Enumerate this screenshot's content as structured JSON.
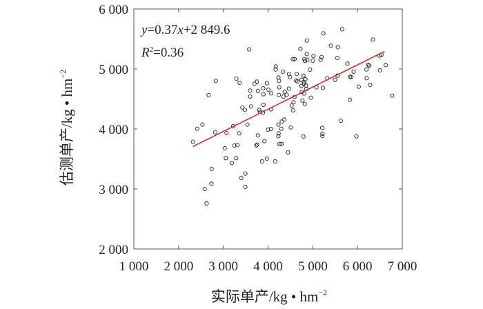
{
  "chart_data": {
    "type": "scatter",
    "xlabel": "实际单产/kg • hm",
    "xlabel_sup": "−2",
    "ylabel": "估测单产/kg • hm",
    "ylabel_sup": "−2",
    "xlim": [
      1000,
      7000
    ],
    "ylim": [
      2000,
      6000
    ],
    "xticks": [
      1000,
      2000,
      3000,
      4000,
      5000,
      6000,
      7000
    ],
    "xtick_labels": [
      "1 000",
      "2 000",
      "3 000",
      "4 000",
      "5 000",
      "6 000",
      "7 000"
    ],
    "yticks": [
      2000,
      3000,
      4000,
      5000,
      6000
    ],
    "ytick_labels": [
      "2 000",
      "3 000",
      "4 000",
      "5 000",
      "6 000"
    ],
    "grid": false,
    "annotations": {
      "equation_y": "y",
      "equation_eq": "=0.37",
      "equation_x": "x",
      "equation_rest": "+2 849.6",
      "r2_label": "R",
      "r2_sup": "2",
      "r2_value": "=0.36"
    },
    "fit": {
      "slope": 0.37,
      "intercept": 2849.6,
      "x_range": [
        2320,
        6600
      ],
      "color": "#e02020"
    },
    "marker_color": "#222222",
    "points": [
      [
        2323,
        3786
      ],
      [
        2415,
        4004
      ],
      [
        2533,
        4073
      ],
      [
        2820,
        3946
      ],
      [
        2672,
        4563
      ],
      [
        2831,
        4801
      ],
      [
        2585,
        3000
      ],
      [
        2626,
        2759
      ],
      [
        2738,
        3334
      ],
      [
        2733,
        3088
      ],
      [
        3031,
        3678
      ],
      [
        3056,
        3514
      ],
      [
        3072,
        3931
      ],
      [
        3190,
        3433
      ],
      [
        3220,
        4046
      ],
      [
        3246,
        3724
      ],
      [
        3313,
        3732
      ],
      [
        3287,
        3514
      ],
      [
        3292,
        4839
      ],
      [
        3364,
        4770
      ],
      [
        3354,
        3927
      ],
      [
        3400,
        3184
      ],
      [
        3426,
        4356
      ],
      [
        3482,
        4318
      ],
      [
        3492,
        3257
      ],
      [
        3492,
        3035
      ],
      [
        3538,
        4073
      ],
      [
        3579,
        5326
      ],
      [
        3600,
        4640
      ],
      [
        3600,
        4540
      ],
      [
        3620,
        4376
      ],
      [
        3697,
        4755
      ],
      [
        3749,
        4789
      ],
      [
        3774,
        4632
      ],
      [
        3800,
        4318
      ],
      [
        3815,
        4287
      ],
      [
        3887,
        4272
      ],
      [
        3897,
        4402
      ],
      [
        3774,
        3893
      ],
      [
        3738,
        3724
      ],
      [
        3759,
        3740
      ],
      [
        3918,
        3797
      ],
      [
        3867,
        3460
      ],
      [
        3974,
        3506
      ],
      [
        3897,
        4579
      ],
      [
        3892,
        4678
      ],
      [
        3974,
        4762
      ],
      [
        4010,
        4655
      ],
      [
        4072,
        4594
      ],
      [
        4067,
        4326
      ],
      [
        3995,
        3989
      ],
      [
        4067,
        4000
      ],
      [
        4159,
        3460
      ],
      [
        4174,
        5042
      ],
      [
        4169,
        4992
      ],
      [
        4231,
        4858
      ],
      [
        4246,
        4801
      ],
      [
        4251,
        4694
      ],
      [
        4241,
        4567
      ],
      [
        4333,
        4954
      ],
      [
        4231,
        4073
      ],
      [
        4236,
        3927
      ],
      [
        4231,
        3881
      ],
      [
        4256,
        3751
      ],
      [
        4303,
        3751
      ],
      [
        4297,
        4004
      ],
      [
        4308,
        4123
      ],
      [
        4364,
        4157
      ],
      [
        4374,
        4617
      ],
      [
        4344,
        4540
      ],
      [
        4415,
        4571
      ],
      [
        4467,
        4916
      ],
      [
        4492,
        4862
      ],
      [
        4467,
        4671
      ],
      [
        4446,
        3609
      ],
      [
        4508,
        4027
      ],
      [
        4528,
        4391
      ],
      [
        4559,
        4310
      ],
      [
        4569,
        4444
      ],
      [
        4554,
        5165
      ],
      [
        4595,
        5165
      ],
      [
        4590,
        4533
      ],
      [
        4626,
        4808
      ],
      [
        4641,
        4916
      ],
      [
        4656,
        4793
      ],
      [
        4723,
        5337
      ],
      [
        4749,
        4820
      ],
      [
        4744,
        4717
      ],
      [
        4754,
        4617
      ],
      [
        4769,
        4475
      ],
      [
        4790,
        4889
      ],
      [
        4800,
        4782
      ],
      [
        4790,
        3874
      ],
      [
        4805,
        4755
      ],
      [
        4805,
        4590
      ],
      [
        4820,
        4418
      ],
      [
        4810,
        5165
      ],
      [
        4826,
        5134
      ],
      [
        4846,
        4724
      ],
      [
        4836,
        4828
      ],
      [
        4856,
        4667
      ],
      [
        4867,
        5249
      ],
      [
        4877,
        5153
      ],
      [
        4867,
        5475
      ],
      [
        4938,
        4989
      ],
      [
        4954,
        4521
      ],
      [
        5000,
        5138
      ],
      [
        5015,
        5215
      ],
      [
        5082,
        4694
      ],
      [
        5174,
        5153
      ],
      [
        5195,
        5199
      ],
      [
        5236,
        5594
      ],
      [
        5226,
        4686
      ],
      [
        5210,
        4019
      ],
      [
        5215,
        3920
      ],
      [
        5215,
        3881
      ],
      [
        5323,
        4847
      ],
      [
        5405,
        5387
      ],
      [
        5497,
        4820
      ],
      [
        5554,
        4889
      ],
      [
        5549,
        5184
      ],
      [
        5559,
        5364
      ],
      [
        5626,
        4138
      ],
      [
        5656,
        5663
      ],
      [
        5774,
        5088
      ],
      [
        5826,
        4487
      ],
      [
        5831,
        4870
      ],
      [
        5861,
        4866
      ],
      [
        5913,
        4954
      ],
      [
        5974,
        3878
      ],
      [
        6026,
        4705
      ],
      [
        6200,
        4992
      ],
      [
        6205,
        4847
      ],
      [
        6236,
        5069
      ],
      [
        6261,
        5057
      ],
      [
        6282,
        4736
      ],
      [
        6343,
        5490
      ],
      [
        6492,
        5222
      ],
      [
        6502,
        4977
      ],
      [
        6538,
        5238
      ],
      [
        6631,
        5065
      ],
      [
        6774,
        4556
      ]
    ]
  }
}
